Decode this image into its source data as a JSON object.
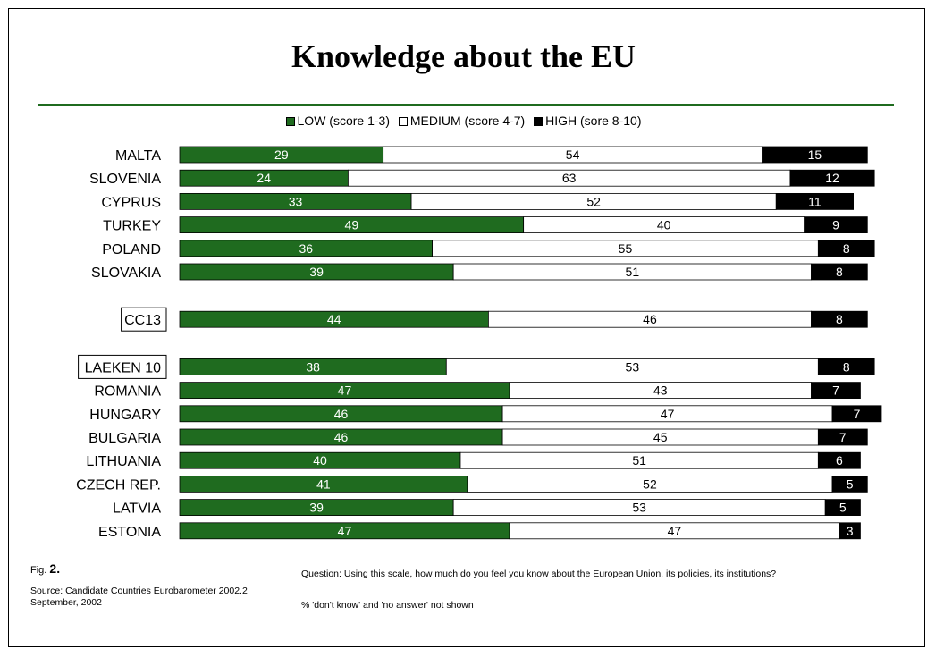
{
  "page": {
    "title": "Knowledge about the EU",
    "fig_label": "Fig.",
    "fig_number": "2.",
    "source_line1": "Source: Candidate Countries Eurobarometer 2002.2",
    "source_line2": "September, 2002",
    "question": "Question: Using this scale, how much do you feel you know about the European Union, its policies, its institutions?",
    "note": "% 'don't know' and 'no answer' not shown"
  },
  "colors": {
    "low": "#1f6b1f",
    "medium": "#ffffff",
    "high": "#000000"
  },
  "chart_data": {
    "type": "bar",
    "orientation": "horizontal",
    "stacked": true,
    "legend_position": "top-center",
    "series": [
      {
        "name": "LOW (score 1-3)"
      },
      {
        "name": "MEDIUM (score 4-7)"
      },
      {
        "name": "HIGH (sore 8-10)"
      }
    ],
    "groups": [
      {
        "boxed": false,
        "rows": [
          {
            "label": "MALTA",
            "values": [
              29,
              54,
              15
            ]
          },
          {
            "label": "SLOVENIA",
            "values": [
              24,
              63,
              12
            ]
          },
          {
            "label": "CYPRUS",
            "values": [
              33,
              52,
              11
            ]
          },
          {
            "label": "TURKEY",
            "values": [
              49,
              40,
              9
            ]
          },
          {
            "label": "POLAND",
            "values": [
              36,
              55,
              8
            ]
          },
          {
            "label": "SLOVAKIA",
            "values": [
              39,
              51,
              8
            ]
          }
        ]
      },
      {
        "boxed": true,
        "rows": [
          {
            "label": "CC13",
            "values": [
              44,
              46,
              8
            ],
            "boxed": true
          }
        ]
      },
      {
        "boxed": false,
        "rows": [
          {
            "label": "LAEKEN 10",
            "values": [
              38,
              53,
              8
            ],
            "boxed": true
          },
          {
            "label": "ROMANIA",
            "values": [
              47,
              43,
              7
            ]
          },
          {
            "label": "HUNGARY",
            "values": [
              46,
              47,
              7
            ]
          },
          {
            "label": "BULGARIA",
            "values": [
              46,
              45,
              7
            ]
          },
          {
            "label": "LITHUANIA",
            "values": [
              40,
              51,
              6
            ]
          },
          {
            "label": "CZECH REP.",
            "values": [
              41,
              52,
              5
            ]
          },
          {
            "label": "LATVIA",
            "values": [
              39,
              53,
              5
            ]
          },
          {
            "label": "ESTONIA",
            "values": [
              47,
              47,
              3
            ]
          }
        ]
      }
    ]
  }
}
